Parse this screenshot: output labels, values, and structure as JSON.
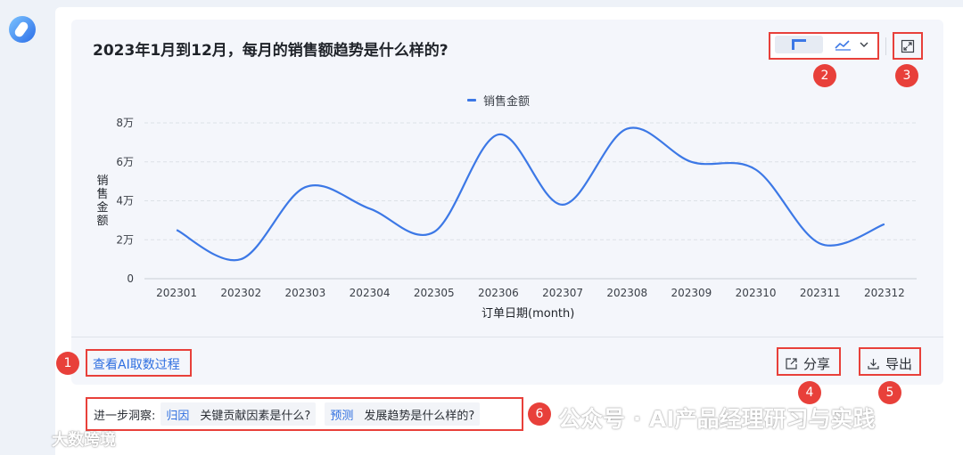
{
  "chart": {
    "title": "2023年1月到12月，每月的销售额趋势是什么样的?",
    "legend": "销售金额",
    "ylabel": "销售金额",
    "xlabel": "订单日期(month)"
  },
  "chart_data": {
    "type": "line",
    "title": "2023年1月到12月，每月的销售额趋势是什么样的?",
    "xlabel": "订单日期(month)",
    "ylabel": "销售金额",
    "categories": [
      "202301",
      "202302",
      "202303",
      "202304",
      "202305",
      "202306",
      "202307",
      "202308",
      "202309",
      "202310",
      "202311",
      "202312"
    ],
    "series": [
      {
        "name": "销售金额",
        "values": [
          25000,
          10000,
          47000,
          36000,
          24000,
          74000,
          38000,
          77000,
          60000,
          56000,
          18000,
          28000
        ]
      }
    ],
    "yticks": [
      "0",
      "2万",
      "4万",
      "6万",
      "8万"
    ],
    "ytick_values": [
      0,
      20000,
      40000,
      60000,
      80000
    ],
    "ylim": [
      0,
      80000
    ],
    "grid": "horizontal dashed",
    "legend_position": "top-center",
    "smooth": true,
    "color": "#3c78e6"
  },
  "controls": {
    "view_toggle": [
      "table-icon",
      "line-chart-icon"
    ],
    "expand": "expand-icon"
  },
  "footer": {
    "ai_link": "查看AI取数过程",
    "share": "分享",
    "export": "导出"
  },
  "insight": {
    "lead": "进一步洞察:",
    "items": [
      {
        "tag": "归因",
        "question": "关键贡献因素是什么?"
      },
      {
        "tag": "预测",
        "question": "发展趋势是什么样的?"
      }
    ]
  },
  "badges": [
    "1",
    "2",
    "3",
    "4",
    "5",
    "6"
  ],
  "watermark": {
    "left": "大数跨境",
    "right": "公众号 · AI产品经理研习与实践"
  },
  "colors": {
    "accent": "#2f6fe0",
    "line": "#3c78e6",
    "annotation": "#e8403a"
  }
}
